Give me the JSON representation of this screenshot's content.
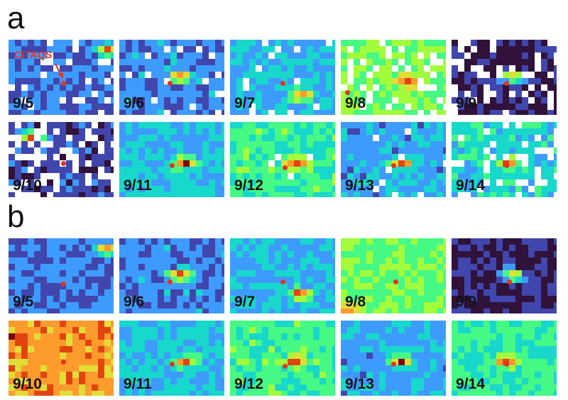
{
  "panels": [
    {
      "label": "a",
      "dates": [
        "9/5",
        "9/6",
        "9/7",
        "9/8",
        "9/9",
        "9/10",
        "9/11",
        "9/12",
        "9/13",
        "9/14"
      ]
    },
    {
      "label": "b",
      "dates": [
        "9/5",
        "9/6",
        "9/7",
        "9/8",
        "9/9",
        "9/10",
        "9/11",
        "9/12",
        "9/13",
        "9/14"
      ]
    }
  ],
  "station": {
    "label": "CITAQS",
    "marker_color": "#e8321e"
  },
  "colormap": [
    "#30123b",
    "#4146ad",
    "#3e9bfe",
    "#18d7cb",
    "#46f884",
    "#a2fc3c",
    "#e1dd37",
    "#fe9b2d",
    "#e1440e",
    "#7a0403"
  ]
}
